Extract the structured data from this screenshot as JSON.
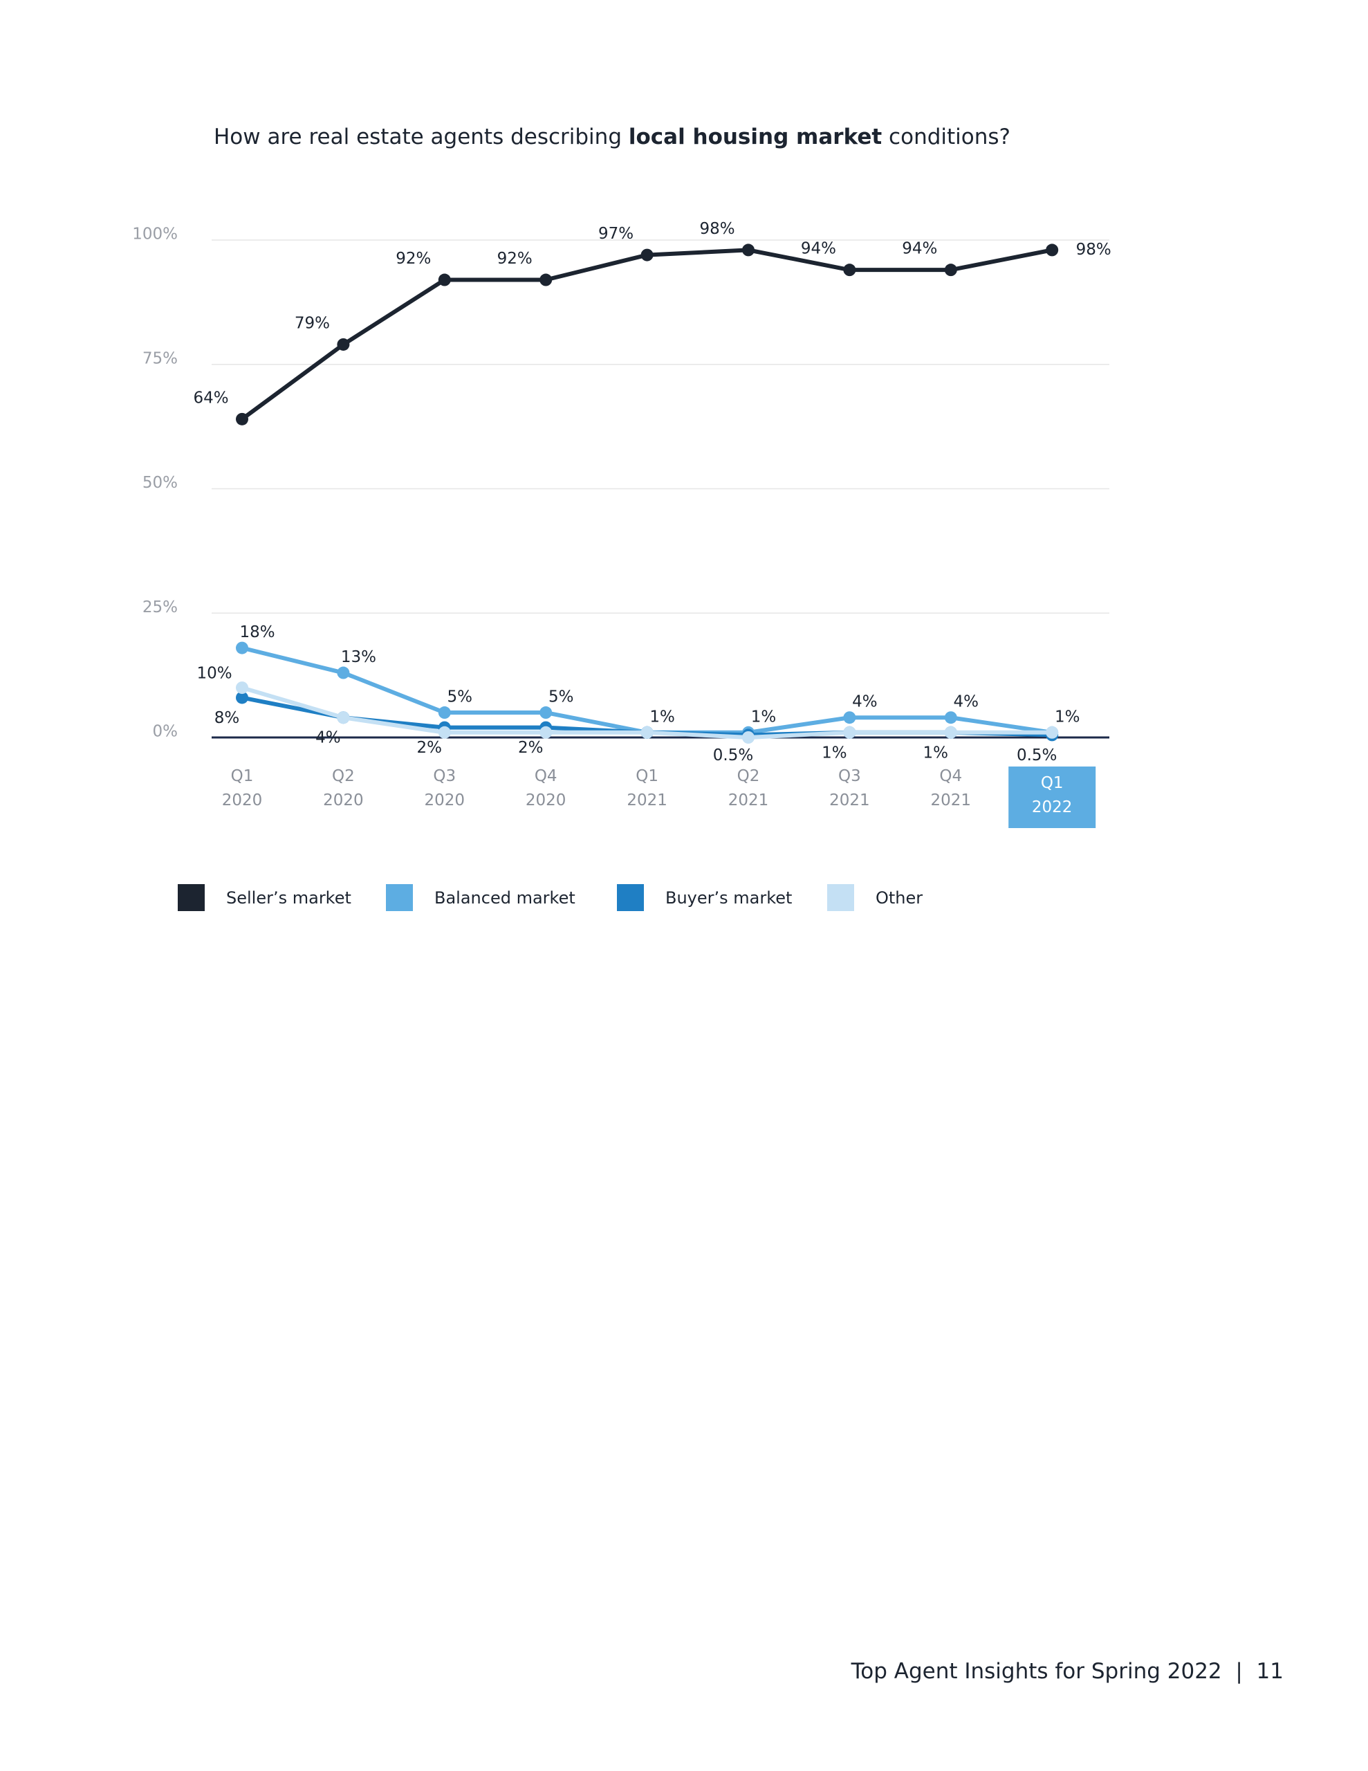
{
  "chart_data": {
    "type": "line",
    "title_parts": [
      "How are real estate agents describing ",
      "local housing market",
      " conditions?"
    ],
    "categories": [
      "Q1\n2020",
      "Q2\n2020",
      "Q3\n2020",
      "Q4\n2020",
      "Q1\n2021",
      "Q2\n2021",
      "Q3\n2021",
      "Q4\n2021",
      "Q1\n2022"
    ],
    "series": [
      {
        "name": "Seller’s market",
        "color": "#1c2430",
        "values": [
          64,
          79,
          92,
          92,
          97,
          98,
          94,
          94,
          98
        ],
        "value_labels": [
          "64%",
          "79%",
          "92%",
          "92%",
          "97%",
          "98%",
          "94%",
          "94%",
          "98%"
        ]
      },
      {
        "name": "Balanced market",
        "color": "#5dade2",
        "values": [
          18,
          13,
          5,
          5,
          1,
          1,
          4,
          4,
          1
        ],
        "value_labels": [
          "18%",
          "13%",
          "5%",
          "5%",
          "1%",
          "1%",
          "4%",
          "4%",
          "1%"
        ]
      },
      {
        "name": "Buyer’s market",
        "color": "#1f7fc4",
        "values": [
          8,
          4,
          2,
          2,
          1,
          0.5,
          1,
          1,
          0.5
        ],
        "value_labels": [
          "8%",
          "4%",
          "2%",
          "2%",
          null,
          "0.5%",
          "1%",
          "1%",
          "0.5%"
        ]
      },
      {
        "name": "Other",
        "color": "#c4e0f4",
        "values": [
          10,
          4,
          1,
          1,
          1,
          0,
          1,
          1,
          1
        ],
        "value_labels": [
          "10%",
          null,
          null,
          null,
          null,
          null,
          null,
          null,
          null
        ]
      }
    ],
    "ylim": [
      0,
      100
    ],
    "yticks": [
      {
        "value": 0,
        "label": "0%"
      },
      {
        "value": 25,
        "label": "25%"
      },
      {
        "value": 50,
        "label": "50%"
      },
      {
        "value": 75,
        "label": "75%"
      },
      {
        "value": 100,
        "label": "100%"
      }
    ],
    "grid": true,
    "legend": "bottom",
    "highlight_category": 8,
    "highlight_color": "#5dade2"
  },
  "footer": {
    "text": "Top Agent Insights for Spring 2022",
    "page": "11"
  }
}
